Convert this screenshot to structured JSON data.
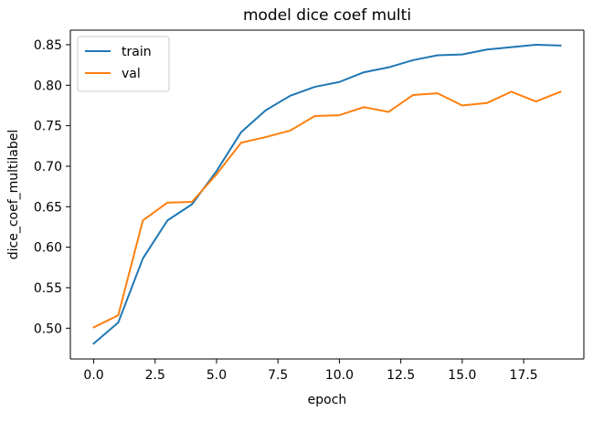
{
  "chart_data": {
    "type": "line",
    "title": "model dice coef multi",
    "xlabel": "epoch",
    "ylabel": "dice_coef_multilabel",
    "xlim": [
      -0.95,
      19.95
    ],
    "ylim": [
      0.462,
      0.868
    ],
    "xticks": [
      0.0,
      2.5,
      5.0,
      7.5,
      10.0,
      12.5,
      15.0,
      17.5
    ],
    "xtick_labels": [
      "0.0",
      "2.5",
      "5.0",
      "7.5",
      "10.0",
      "12.5",
      "15.0",
      "17.5"
    ],
    "yticks": [
      0.5,
      0.55,
      0.6,
      0.65,
      0.7,
      0.75,
      0.8,
      0.85
    ],
    "ytick_labels": [
      "0.50",
      "0.55",
      "0.60",
      "0.65",
      "0.70",
      "0.75",
      "0.80",
      "0.85"
    ],
    "grid": false,
    "legend_position": "top-left",
    "x": [
      0,
      1,
      2,
      3,
      4,
      5,
      6,
      7,
      8,
      9,
      10,
      11,
      12,
      13,
      14,
      15,
      16,
      17,
      18,
      19
    ],
    "series": [
      {
        "name": "train",
        "color": "#1f77b4",
        "values": [
          0.481,
          0.507,
          0.586,
          0.633,
          0.653,
          0.694,
          0.742,
          0.769,
          0.787,
          0.798,
          0.804,
          0.816,
          0.822,
          0.831,
          0.837,
          0.838,
          0.844,
          0.847,
          0.85,
          0.849
        ]
      },
      {
        "name": "val",
        "color": "#ff7f0e",
        "values": [
          0.501,
          0.516,
          0.633,
          0.655,
          0.656,
          0.69,
          0.729,
          0.736,
          0.744,
          0.762,
          0.763,
          0.773,
          0.767,
          0.788,
          0.79,
          0.775,
          0.778,
          0.792,
          0.78,
          0.792
        ]
      }
    ]
  }
}
